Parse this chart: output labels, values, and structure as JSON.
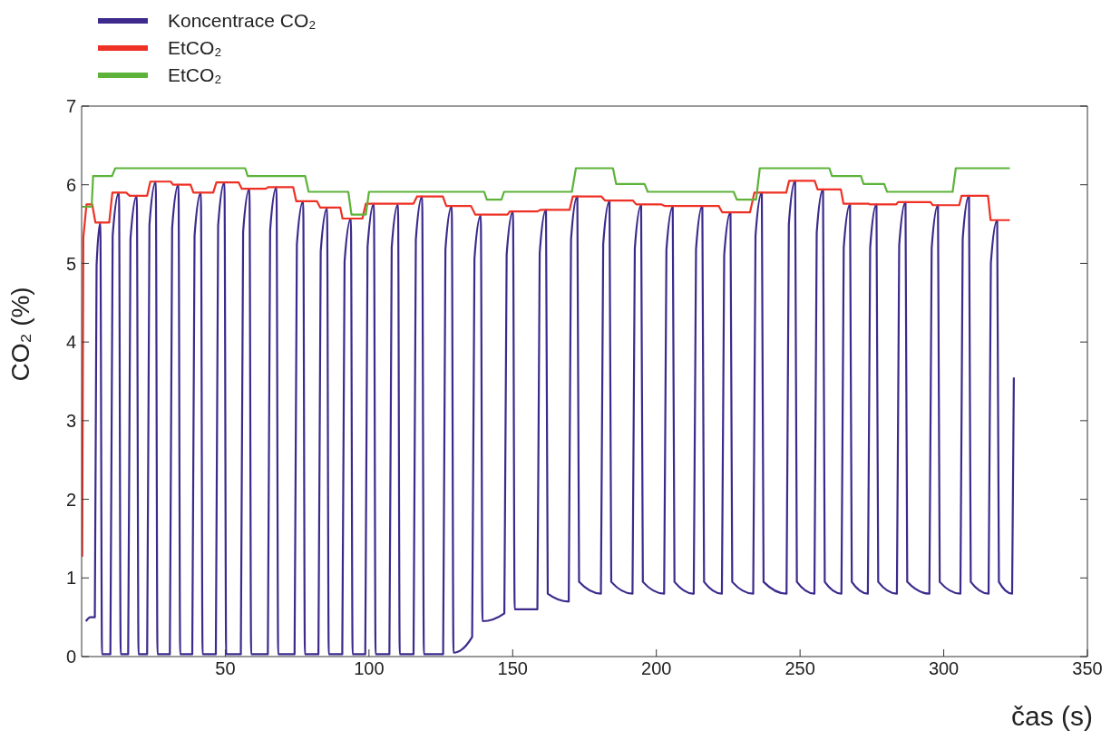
{
  "chart_data": {
    "type": "line",
    "ylabel": "CO₂ (%)",
    "xlabel": "čas (s)",
    "xlim": [
      0,
      350
    ],
    "xticks": [
      50,
      100,
      150,
      200,
      250,
      300,
      350
    ],
    "ylim": [
      0,
      7
    ],
    "yticks": [
      0,
      1,
      2,
      3,
      4,
      5,
      6,
      7
    ],
    "grid": false,
    "legend": "top left",
    "marker": "none",
    "line_style": "solid",
    "series": [
      {
        "name": "Koncentrace CO₂",
        "color": "#3d2a8c",
        "x": [
          1.5,
          3.0,
          4.6,
          5.2,
          6.5,
          7.1,
          10.0,
          10.8,
          13.0,
          13.6,
          16.2,
          17.0,
          19.2,
          19.8,
          22.8,
          23.6,
          25.8,
          26.4,
          30.7,
          31.5,
          33.7,
          34.3,
          38.5,
          39.3,
          41.5,
          42.1,
          46.7,
          47.5,
          49.7,
          50.3,
          55.4,
          56.2,
          58.4,
          59.0,
          64.8,
          65.6,
          67.8,
          68.4,
          74.1,
          74.9,
          77.1,
          77.7,
          82.4,
          83.2,
          85.4,
          86.0,
          90.7,
          91.5,
          93.7,
          94.3,
          98.7,
          99.5,
          101.7,
          102.3,
          107.1,
          107.9,
          110.1,
          110.7,
          115.5,
          116.3,
          118.5,
          119.1,
          125.8,
          126.6,
          128.8,
          129.4,
          135.9,
          136.7,
          138.9,
          139.5,
          147.1,
          147.9,
          150.1,
          150.7,
          158.6,
          159.4,
          161.6,
          162.2,
          169.5,
          170.3,
          172.5,
          173.1,
          180.7,
          181.5,
          183.7,
          184.3,
          191.7,
          192.5,
          194.7,
          195.3,
          202.7,
          203.5,
          205.7,
          206.3,
          213.0,
          213.8,
          216.0,
          216.6,
          222.8,
          223.6,
          225.8,
          226.4,
          233.7,
          234.5,
          236.7,
          237.3,
          245.3,
          246.1,
          248.3,
          248.9,
          255.0,
          255.8,
          258.0,
          258.6,
          264.4,
          265.2,
          267.4,
          268.0,
          273.6,
          274.4,
          276.6,
          277.2,
          283.7,
          284.5,
          286.7,
          287.3,
          295.0,
          295.8,
          298.0,
          298.6,
          305.8,
          306.6,
          308.8,
          309.4,
          315.6,
          316.4,
          318.6,
          319.2,
          323.8,
          324.4
        ],
        "values": [
          0.45,
          0.5,
          0.5,
          4.97,
          5.52,
          0.03,
          0.03,
          5.35,
          5.9,
          0.03,
          0.03,
          5.31,
          5.86,
          0.03,
          0.03,
          5.49,
          6.04,
          0.03,
          0.03,
          5.45,
          6.0,
          0.03,
          0.03,
          5.35,
          5.9,
          0.03,
          0.03,
          5.48,
          6.03,
          0.03,
          0.03,
          5.4,
          5.95,
          0.03,
          0.03,
          5.42,
          5.97,
          0.03,
          0.03,
          5.24,
          5.79,
          0.03,
          0.03,
          5.15,
          5.7,
          0.03,
          0.03,
          5.02,
          5.57,
          0.03,
          0.03,
          5.21,
          5.76,
          0.03,
          0.03,
          5.2,
          5.75,
          0.03,
          0.03,
          5.3,
          5.85,
          0.03,
          0.03,
          5.18,
          5.73,
          0.05,
          0.25,
          5.06,
          5.61,
          0.45,
          0.55,
          5.11,
          5.66,
          0.6,
          0.6,
          5.13,
          5.68,
          0.8,
          0.7,
          5.3,
          5.85,
          0.95,
          0.8,
          5.24,
          5.79,
          0.95,
          0.8,
          5.19,
          5.74,
          0.95,
          0.8,
          5.17,
          5.72,
          0.95,
          0.8,
          5.18,
          5.73,
          0.95,
          0.8,
          5.1,
          5.65,
          0.95,
          0.8,
          5.35,
          5.9,
          0.95,
          0.8,
          5.5,
          6.05,
          0.95,
          0.8,
          5.39,
          5.94,
          0.95,
          0.8,
          5.2,
          5.75,
          0.95,
          0.8,
          5.2,
          5.75,
          0.95,
          0.8,
          5.23,
          5.78,
          0.95,
          0.8,
          5.19,
          5.74,
          0.95,
          0.8,
          5.31,
          5.86,
          0.95,
          0.8,
          5.0,
          5.55,
          0.95,
          0.8,
          3.55
        ]
      },
      {
        "name": "EtCO₂",
        "color": "#ee3124",
        "x": [
          0.2,
          0.6,
          1.7,
          3.7,
          4.8,
          9.6,
          10.7,
          15.5,
          16.7,
          22.8,
          23.9,
          31.0,
          31.8,
          37.9,
          38.9,
          45.8,
          46.9,
          54.6,
          55.7,
          64.1,
          64.9,
          73.6,
          74.7,
          81.9,
          83.0,
          90.0,
          90.8,
          97.7,
          98.9,
          115.5,
          116.7,
          125.7,
          126.9,
          135.5,
          137.0,
          148.2,
          149.0,
          158.5,
          159.7,
          169.8,
          170.9,
          180.9,
          182.1,
          191.8,
          193.0,
          201.8,
          203.0,
          221.7,
          222.9,
          232.6,
          234.1,
          245.2,
          246.2,
          255.1,
          256.1,
          264.2,
          265.1,
          273.8,
          274.3,
          283.5,
          284.1,
          295.4,
          296.2,
          305.4,
          306.2,
          315.4,
          316.3,
          323.0
        ],
        "values": [
          1.27,
          5.33,
          5.75,
          5.75,
          5.52,
          5.52,
          5.9,
          5.9,
          5.86,
          5.86,
          6.04,
          6.04,
          6.0,
          6.0,
          5.9,
          5.9,
          6.03,
          6.03,
          5.95,
          5.95,
          5.97,
          5.97,
          5.79,
          5.79,
          5.71,
          5.71,
          5.57,
          5.57,
          5.76,
          5.76,
          5.85,
          5.85,
          5.73,
          5.73,
          5.62,
          5.62,
          5.66,
          5.66,
          5.68,
          5.68,
          5.85,
          5.85,
          5.8,
          5.8,
          5.75,
          5.75,
          5.73,
          5.73,
          5.65,
          5.65,
          5.9,
          5.9,
          6.05,
          6.05,
          5.94,
          5.94,
          5.76,
          5.76,
          5.75,
          5.75,
          5.78,
          5.78,
          5.74,
          5.74,
          5.86,
          5.86,
          5.55,
          5.55
        ]
      },
      {
        "name": "EtCO₂",
        "color": "#5db33a",
        "x": [
          0.2,
          3.5,
          4.0,
          7.7,
          10.6,
          11.7,
          56.9,
          57.8,
          77.8,
          79.0,
          92.8,
          93.9,
          98.9,
          100.0,
          140.1,
          141.0,
          146.1,
          147.0,
          170.6,
          172.0,
          184.9,
          186.0,
          195.9,
          197.0,
          226.9,
          228.0,
          234.7,
          236.0,
          260.2,
          261.1,
          271.2,
          272.1,
          279.3,
          280.3,
          303.1,
          304.2,
          323.0
        ],
        "values": [
          5.72,
          5.72,
          6.11,
          6.11,
          6.11,
          6.21,
          6.21,
          6.11,
          6.11,
          5.91,
          5.91,
          5.62,
          5.62,
          5.91,
          5.91,
          5.81,
          5.81,
          5.91,
          5.91,
          6.21,
          6.21,
          6.01,
          6.01,
          5.91,
          5.91,
          5.81,
          5.81,
          6.21,
          6.21,
          6.11,
          6.11,
          6.01,
          6.01,
          5.91,
          5.91,
          6.21,
          6.21
        ]
      }
    ]
  }
}
